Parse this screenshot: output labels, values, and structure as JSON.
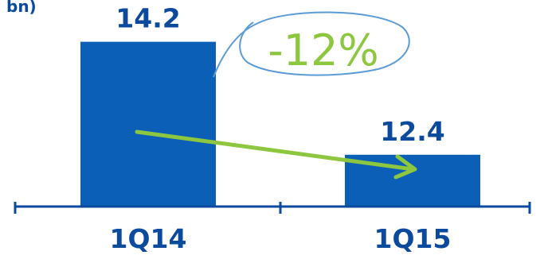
{
  "unit_fragment": "bn)",
  "colors": {
    "bar": "#0b5fb6",
    "axis": "#0b4a9c",
    "label": "#0b4a9c",
    "arrow": "#8dc63f",
    "ellipse": "#5a9bd5"
  },
  "chart_data": {
    "type": "bar",
    "categories": [
      "1Q14",
      "1Q15"
    ],
    "values": [
      14.2,
      12.4
    ],
    "value_labels": [
      "14.2",
      "12.4"
    ],
    "change_annotation": "-12%",
    "grid": false,
    "legend": "none"
  }
}
